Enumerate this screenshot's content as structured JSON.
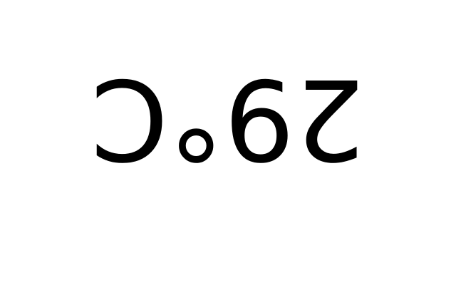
{
  "display": {
    "temperature": "29°C",
    "text_color": "#000000",
    "background_color": "#ffffff",
    "orientation": "upside-down"
  }
}
